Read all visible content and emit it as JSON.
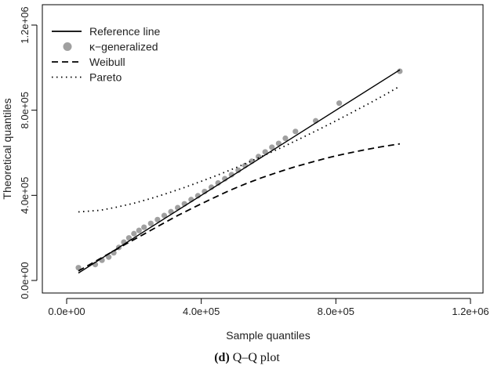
{
  "caption": {
    "label": "(d)",
    "text": "Q–Q plot"
  },
  "chart_data": {
    "type": "scatter",
    "title": "",
    "xlabel": "Sample quantiles",
    "ylabel": "Theoretical quantiles",
    "xlim": [
      -60000,
      1200000
    ],
    "ylim": [
      -40000,
      1200000
    ],
    "xticks": [
      0,
      400000,
      800000,
      1200000
    ],
    "yticks": [
      0,
      400000,
      800000,
      1200000
    ],
    "xtick_labels": [
      "0.0e+00",
      "4.0e+05",
      "8.0e+05",
      "1.2e+06"
    ],
    "ytick_labels": [
      "0.0e+00",
      "4.0e+05",
      "8.0e+05",
      "1.2e+06"
    ],
    "grid": false,
    "legend_position": "top-left",
    "legend": [
      {
        "label": "Reference line",
        "style": "solid"
      },
      {
        "label": "κ−generalized",
        "style": "points"
      },
      {
        "label": "Weibull",
        "style": "dashed"
      },
      {
        "label": "Pareto",
        "style": "dotted"
      }
    ],
    "series": [
      {
        "name": "Reference line",
        "kind": "line",
        "style": "solid",
        "color": "#000000",
        "x": [
          35000,
          990000
        ],
        "y": [
          35000,
          990000
        ]
      },
      {
        "name": "κ−generalized",
        "kind": "points",
        "color": "#a0a0a0",
        "x": [
          35000,
          85000,
          105000,
          125000,
          140000,
          155000,
          170000,
          185000,
          200000,
          215000,
          230000,
          250000,
          270000,
          290000,
          310000,
          330000,
          350000,
          370000,
          390000,
          410000,
          430000,
          450000,
          470000,
          490000,
          510000,
          530000,
          550000,
          570000,
          590000,
          610000,
          630000,
          650000,
          680000,
          740000,
          810000,
          990000
        ],
        "y": [
          60000,
          75000,
          95000,
          110000,
          130000,
          155000,
          180000,
          200000,
          220000,
          235000,
          250000,
          268000,
          286000,
          305000,
          323000,
          342000,
          360000,
          380000,
          398000,
          418000,
          438000,
          458000,
          478000,
          497000,
          518000,
          540000,
          560000,
          582000,
          604000,
          626000,
          644000,
          668000,
          700000,
          750000,
          833000,
          983000
        ]
      },
      {
        "name": "Weibull",
        "kind": "line",
        "style": "dashed",
        "color": "#000000",
        "x": [
          35000,
          80000,
          130000,
          180000,
          230000,
          280000,
          330000,
          380000,
          430000,
          480000,
          530000,
          580000,
          630000,
          680000,
          730000,
          780000,
          830000,
          880000,
          930000,
          990000
        ],
        "y": [
          45000,
          85000,
          130000,
          175000,
          218000,
          262000,
          305000,
          345000,
          383000,
          420000,
          453000,
          483000,
          510000,
          535000,
          557000,
          578000,
          596000,
          612000,
          627000,
          642000
        ]
      },
      {
        "name": "Pareto",
        "kind": "line",
        "style": "dotted",
        "color": "#000000",
        "x": [
          35000,
          100000,
          150000,
          200000,
          250000,
          300000,
          350000,
          400000,
          450000,
          500000,
          550000,
          600000,
          650000,
          700000,
          750000,
          800000,
          850000,
          900000,
          950000,
          990000
        ],
        "y": [
          322000,
          330000,
          345000,
          363000,
          385000,
          410000,
          437000,
          466000,
          496000,
          528000,
          562000,
          597000,
          633000,
          671000,
          710000,
          750000,
          791000,
          833000,
          876000,
          913000
        ]
      }
    ]
  }
}
